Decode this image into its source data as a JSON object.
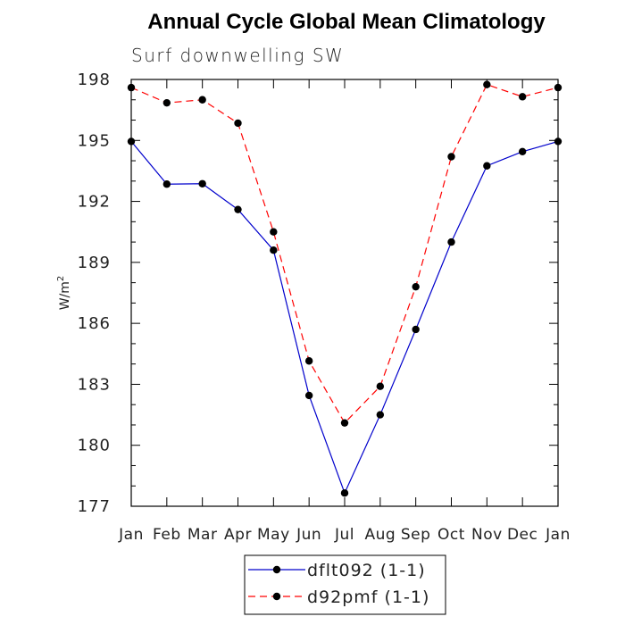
{
  "chart_data": {
    "type": "line",
    "title": "Annual Cycle Global Mean Climatology",
    "subtitle": "Surf downwelling SW",
    "xlabel": "",
    "ylabel_base": "W/m",
    "ylabel_sup": "2",
    "categories": [
      "Jan",
      "Feb",
      "Mar",
      "Apr",
      "May",
      "Jun",
      "Jul",
      "Aug",
      "Sep",
      "Oct",
      "Nov",
      "Dec",
      "Jan"
    ],
    "ylim": [
      177,
      198
    ],
    "yticks": [
      177,
      180,
      183,
      186,
      189,
      192,
      195,
      198
    ],
    "series": [
      {
        "name": "dflt092 (1-1)",
        "color": "#0000cc",
        "dash": "solid",
        "values": [
          194.95,
          192.85,
          192.87,
          191.6,
          189.6,
          182.45,
          177.65,
          181.5,
          185.7,
          190.0,
          193.75,
          194.45,
          194.95
        ]
      },
      {
        "name": "d92pmf (1-1)",
        "color": "#ff0000",
        "dash": "dashed",
        "values": [
          197.6,
          196.85,
          197.0,
          195.85,
          190.5,
          184.15,
          181.1,
          182.9,
          187.8,
          194.2,
          197.75,
          197.15,
          197.6
        ]
      }
    ],
    "legend": {
      "position": "bottom-center",
      "entries": [
        "dflt092 (1-1)",
        "d92pmf (1-1)"
      ]
    }
  }
}
